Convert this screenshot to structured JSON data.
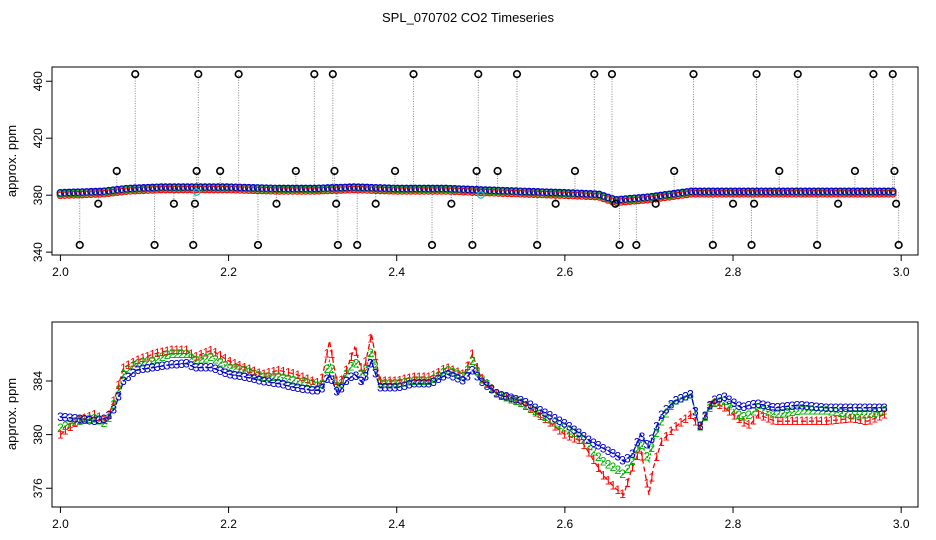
{
  "title": "SPL_070702  CO2 Timeseries",
  "colors": {
    "series1": "#ff0000",
    "series2": "#00b000",
    "series3": "#0000cc",
    "spike": "#000000",
    "cyan": "#00cccc",
    "axis": "#000000",
    "vline": "#888888"
  },
  "chart_data": [
    {
      "type": "scatter",
      "title": "SPL_070702  CO2 Timeseries",
      "xlabel": "",
      "ylabel": "approx. ppm",
      "xlim": [
        1.99,
        3.02
      ],
      "ylim": [
        338,
        470
      ],
      "xticks": [
        2.0,
        2.2,
        2.4,
        2.6,
        2.8,
        3.0
      ],
      "xtick_labels": [
        "2.0",
        "2.2",
        "2.4",
        "2.6",
        "2.8",
        "3.0"
      ],
      "yticks": [
        340,
        380,
        420,
        460
      ],
      "ytick_labels": [
        "340",
        "380",
        "420",
        "460"
      ],
      "baseline": {
        "x": [
          2.0,
          2.05,
          2.08,
          2.12,
          2.16,
          2.2,
          2.26,
          2.3,
          2.35,
          2.4,
          2.46,
          2.5,
          2.55,
          2.6,
          2.64,
          2.66,
          2.7,
          2.75,
          2.8,
          2.85,
          2.9,
          2.95,
          2.99
        ],
        "y": [
          381,
          382,
          384,
          385,
          385,
          385,
          384,
          384,
          385,
          384,
          384,
          383,
          382,
          381,
          380,
          376,
          378,
          382,
          382,
          382,
          382,
          382,
          382
        ]
      },
      "spikes": [
        {
          "x": 2.023,
          "y": 345
        },
        {
          "x": 2.045,
          "y": 374
        },
        {
          "x": 2.067,
          "y": 397
        },
        {
          "x": 2.089,
          "y": 465
        },
        {
          "x": 2.112,
          "y": 345
        },
        {
          "x": 2.135,
          "y": 374
        },
        {
          "x": 2.158,
          "y": 345
        },
        {
          "x": 2.16,
          "y": 374
        },
        {
          "x": 2.162,
          "y": 397
        },
        {
          "x": 2.164,
          "y": 465
        },
        {
          "x": 2.19,
          "y": 397
        },
        {
          "x": 2.212,
          "y": 465
        },
        {
          "x": 2.235,
          "y": 345
        },
        {
          "x": 2.257,
          "y": 374
        },
        {
          "x": 2.28,
          "y": 397
        },
        {
          "x": 2.302,
          "y": 465
        },
        {
          "x": 2.324,
          "y": 465
        },
        {
          "x": 2.326,
          "y": 397
        },
        {
          "x": 2.328,
          "y": 374
        },
        {
          "x": 2.33,
          "y": 345
        },
        {
          "x": 2.353,
          "y": 345
        },
        {
          "x": 2.375,
          "y": 374
        },
        {
          "x": 2.398,
          "y": 397
        },
        {
          "x": 2.42,
          "y": 465
        },
        {
          "x": 2.442,
          "y": 345
        },
        {
          "x": 2.465,
          "y": 374
        },
        {
          "x": 2.49,
          "y": 345
        },
        {
          "x": 2.495,
          "y": 397
        },
        {
          "x": 2.497,
          "y": 465
        },
        {
          "x": 2.52,
          "y": 397
        },
        {
          "x": 2.543,
          "y": 465
        },
        {
          "x": 2.567,
          "y": 345
        },
        {
          "x": 2.589,
          "y": 374
        },
        {
          "x": 2.612,
          "y": 397
        },
        {
          "x": 2.635,
          "y": 465
        },
        {
          "x": 2.656,
          "y": 465
        },
        {
          "x": 2.66,
          "y": 374
        },
        {
          "x": 2.665,
          "y": 345
        },
        {
          "x": 2.685,
          "y": 345
        },
        {
          "x": 2.708,
          "y": 374
        },
        {
          "x": 2.73,
          "y": 397
        },
        {
          "x": 2.753,
          "y": 465
        },
        {
          "x": 2.776,
          "y": 345
        },
        {
          "x": 2.8,
          "y": 374
        },
        {
          "x": 2.822,
          "y": 345
        },
        {
          "x": 2.825,
          "y": 374
        },
        {
          "x": 2.828,
          "y": 465
        },
        {
          "x": 2.855,
          "y": 397
        },
        {
          "x": 2.877,
          "y": 465
        },
        {
          "x": 2.9,
          "y": 345
        },
        {
          "x": 2.925,
          "y": 374
        },
        {
          "x": 2.945,
          "y": 397
        },
        {
          "x": 2.967,
          "y": 465
        },
        {
          "x": 2.99,
          "y": 465
        },
        {
          "x": 2.992,
          "y": 397
        },
        {
          "x": 2.994,
          "y": 374
        },
        {
          "x": 2.997,
          "y": 345
        }
      ]
    },
    {
      "type": "line",
      "title": "",
      "xlabel": "",
      "ylabel": "approx. ppm",
      "xlim": [
        1.99,
        3.02
      ],
      "ylim": [
        374.6,
        388.4
      ],
      "xticks": [
        2.0,
        2.2,
        2.4,
        2.6,
        2.8,
        3.0
      ],
      "xtick_labels": [
        "2.0",
        "2.2",
        "2.4",
        "2.6",
        "2.8",
        "3.0"
      ],
      "yticks": [
        376,
        380,
        384
      ],
      "ytick_labels": [
        "376",
        "380",
        "384"
      ],
      "x": [
        2.0,
        2.02,
        2.04,
        2.055,
        2.065,
        2.075,
        2.09,
        2.11,
        2.13,
        2.15,
        2.16,
        2.18,
        2.2,
        2.22,
        2.24,
        2.26,
        2.28,
        2.3,
        2.31,
        2.32,
        2.33,
        2.34,
        2.35,
        2.36,
        2.37,
        2.38,
        2.4,
        2.42,
        2.44,
        2.46,
        2.48,
        2.49,
        2.5,
        2.52,
        2.55,
        2.58,
        2.6,
        2.62,
        2.63,
        2.645,
        2.66,
        2.67,
        2.68,
        2.69,
        2.7,
        2.705,
        2.715,
        2.73,
        2.75,
        2.76,
        2.775,
        2.79,
        2.81,
        2.82,
        2.83,
        2.85,
        2.88,
        2.91,
        2.94,
        2.96,
        2.98
      ],
      "series": [
        {
          "name": "1",
          "marker": "1",
          "values": [
            380.0,
            381.0,
            381.5,
            381.0,
            382.8,
            385.0,
            385.5,
            386.0,
            386.3,
            386.3,
            385.8,
            386.3,
            385.5,
            385.0,
            384.5,
            384.8,
            384.5,
            384.0,
            383.8,
            387.0,
            383.5,
            384.8,
            386.5,
            384.5,
            387.5,
            384.0,
            384.0,
            384.3,
            384.3,
            385.0,
            384.5,
            386.0,
            384.3,
            383.0,
            382.3,
            381.0,
            380.0,
            379.5,
            378.5,
            377.0,
            376.0,
            375.5,
            377.5,
            379.0,
            375.5,
            377.5,
            379.5,
            380.5,
            381.5,
            380.5,
            382.5,
            382.0,
            381.0,
            380.7,
            381.5,
            381.0,
            381.0,
            381.0,
            381.2,
            381.0,
            381.5
          ]
        },
        {
          "name": "2",
          "marker": "2",
          "values": [
            380.5,
            381.0,
            381.2,
            380.8,
            382.5,
            384.5,
            385.3,
            385.5,
            386.0,
            386.0,
            385.5,
            385.8,
            385.0,
            384.8,
            384.3,
            384.3,
            384.0,
            383.8,
            383.5,
            385.5,
            383.3,
            384.5,
            385.5,
            384.2,
            386.3,
            383.8,
            383.8,
            384.0,
            384.0,
            384.8,
            384.3,
            385.5,
            384.2,
            383.0,
            382.3,
            381.2,
            380.5,
            379.8,
            379.0,
            378.0,
            377.5,
            377.0,
            378.0,
            379.5,
            378.0,
            379.5,
            381.0,
            382.5,
            383.0,
            380.5,
            382.3,
            382.5,
            381.3,
            381.5,
            382.0,
            381.5,
            381.8,
            381.8,
            381.5,
            381.5,
            381.8
          ]
        },
        {
          "name": "3",
          "marker": "3",
          "values": [
            381.3,
            381.2,
            381.0,
            381.2,
            382.0,
            384.0,
            384.8,
            385.0,
            385.2,
            385.3,
            385.0,
            385.0,
            384.5,
            384.3,
            384.0,
            383.8,
            383.5,
            383.3,
            383.3,
            384.5,
            383.0,
            384.0,
            384.5,
            383.8,
            385.5,
            383.5,
            383.5,
            383.8,
            383.8,
            384.5,
            384.0,
            384.8,
            384.0,
            383.0,
            382.5,
            381.5,
            380.8,
            380.0,
            379.5,
            379.0,
            378.5,
            378.0,
            378.5,
            380.0,
            379.0,
            380.0,
            381.5,
            382.5,
            383.0,
            380.5,
            382.5,
            382.8,
            382.0,
            382.2,
            382.3,
            382.0,
            382.2,
            382.0,
            382.0,
            382.0,
            382.0
          ]
        }
      ]
    }
  ]
}
